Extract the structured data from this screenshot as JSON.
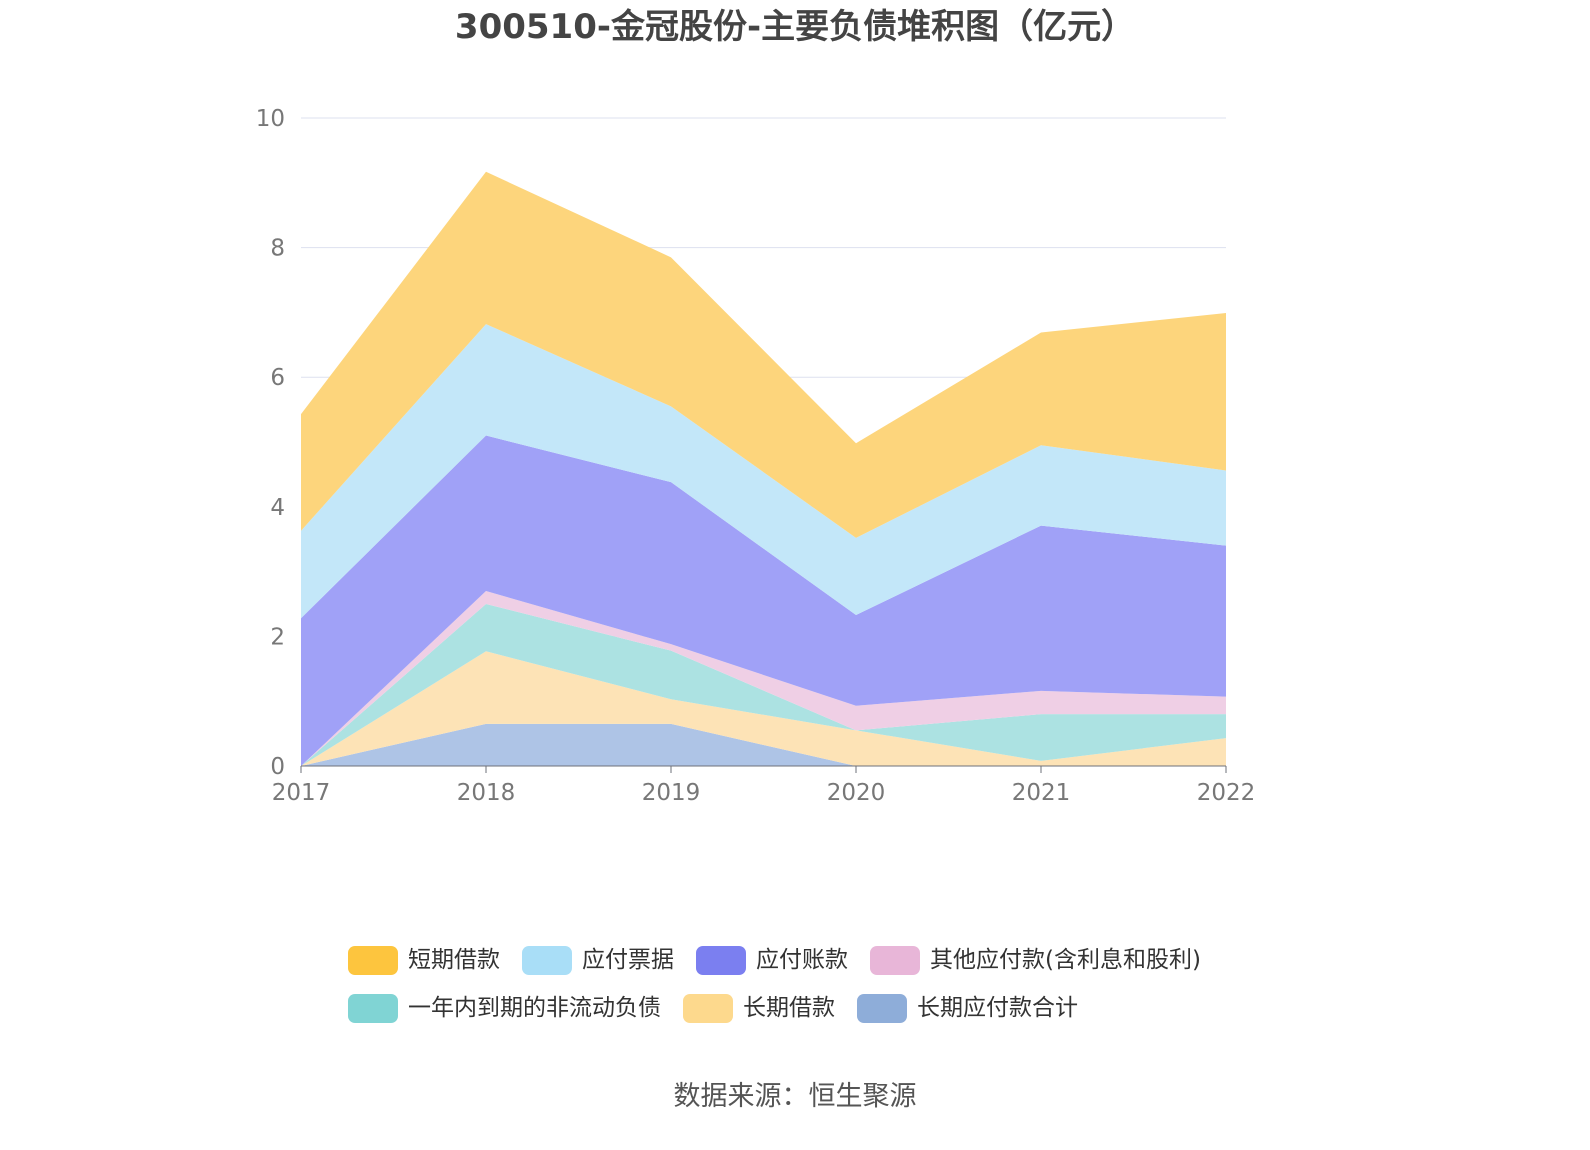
{
  "title": "300510-金冠股份-主要负债堆积图（亿元）",
  "source": "数据来源：恒生聚源",
  "chart_data": {
    "type": "area",
    "stacked": true,
    "x": [
      "2017",
      "2018",
      "2019",
      "2020",
      "2021",
      "2022"
    ],
    "ylim": [
      0,
      10
    ],
    "yticks": [
      0,
      2,
      4,
      6,
      8,
      10
    ],
    "grid": true,
    "legend_position": "bottom",
    "series": [
      {
        "name": "长期应付款合计",
        "color": "#8eadd9",
        "fill": "#aec4e6",
        "values": [
          0,
          0.65,
          0.65,
          0,
          0,
          0
        ]
      },
      {
        "name": "长期借款",
        "color": "#fdd98d",
        "fill": "#fde3b6",
        "values": [
          0,
          1.12,
          0.38,
          0.55,
          0.08,
          0.43
        ]
      },
      {
        "name": "一年内到期的非流动负债",
        "color": "#80d4d4",
        "fill": "#ace2e2",
        "values": [
          0,
          0.73,
          0.75,
          0,
          0.72,
          0.37
        ]
      },
      {
        "name": "其他应付款(含利息和股利)",
        "color": "#e8b6d8",
        "fill": "#efcfe5",
        "values": [
          0,
          0.2,
          0.1,
          0.38,
          0.36,
          0.27
        ]
      },
      {
        "name": "应付账款",
        "color": "#7b7ff0",
        "fill": "#a0a1f7",
        "values": [
          2.28,
          2.4,
          2.5,
          1.4,
          2.55,
          2.33
        ]
      },
      {
        "name": "应付票据",
        "color": "#a9def7",
        "fill": "#c3e7f9",
        "values": [
          1.35,
          1.72,
          1.17,
          1.19,
          1.24,
          1.16
        ]
      },
      {
        "name": "短期借款",
        "color": "#fdc53e",
        "fill": "#fdd57c",
        "values": [
          1.8,
          2.35,
          2.3,
          1.46,
          1.74,
          2.43
        ]
      }
    ]
  },
  "legend": {
    "row1": [
      {
        "label": "短期借款",
        "color": "#fdc53e"
      },
      {
        "label": "应付票据",
        "color": "#a9def7"
      },
      {
        "label": "应付账款",
        "color": "#7b7ff0"
      },
      {
        "label": "其他应付款(含利息和股利)",
        "color": "#e8b6d8"
      }
    ],
    "row2": [
      {
        "label": "一年内到期的非流动负债",
        "color": "#80d4d4"
      },
      {
        "label": "长期借款",
        "color": "#fdd98d"
      },
      {
        "label": "长期应付款合计",
        "color": "#8eadd9"
      }
    ]
  }
}
